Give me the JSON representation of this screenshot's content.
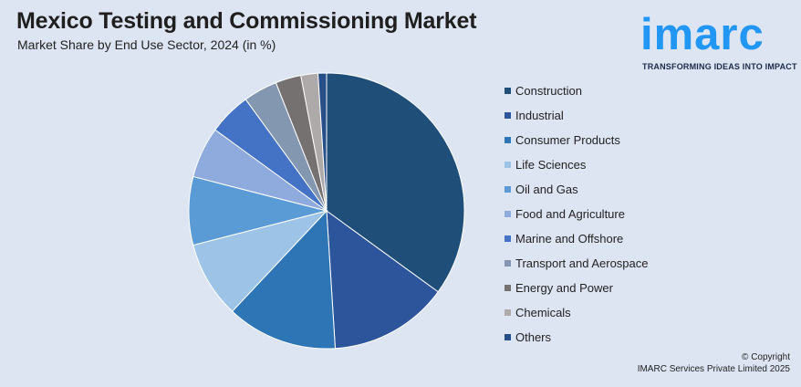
{
  "header": {
    "title": "Mexico Testing and Commissioning Market",
    "subtitle": "Market Share by End Use Sector, 2024 (in %)"
  },
  "logo": {
    "wordmark": "imarc",
    "tagline": "TRANSFORMING IDEAS INTO IMPACT",
    "color": "#2196f3"
  },
  "footer": {
    "copyright_line1": "© Copyright",
    "copyright_line2": "IMARC Services Private Limited 2025"
  },
  "chart_data": {
    "type": "pie",
    "title": "Market Share by End Use Sector, 2024 (in %)",
    "legend_position": "right",
    "categories": [
      "Construction",
      "Industrial",
      "Consumer Products",
      "Life Sciences",
      "Oil and Gas",
      "Food and Agriculture",
      "Marine and Offshore",
      "Transport and Aerospace",
      "Energy and Power",
      "Chemicals",
      "Others"
    ],
    "values": [
      35,
      14,
      13,
      9,
      8,
      6,
      5,
      4,
      3,
      2,
      1
    ],
    "colors": [
      "#1f4e79",
      "#2d559c",
      "#2e75b6",
      "#9dc3e6",
      "#5b9bd5",
      "#8faadc",
      "#4472c4",
      "#8497b0",
      "#767171",
      "#aeaaaa",
      "#264f8a"
    ]
  }
}
